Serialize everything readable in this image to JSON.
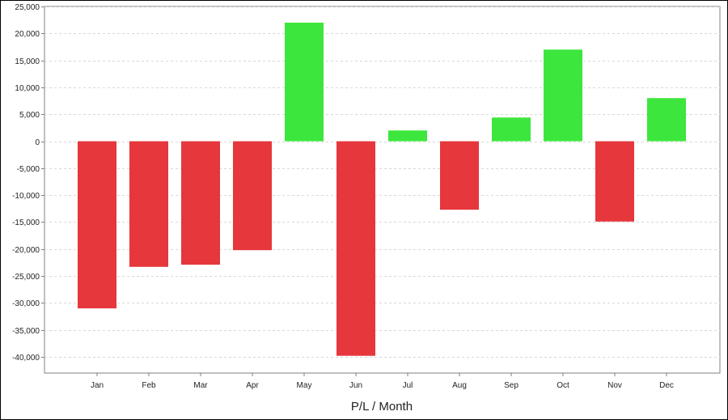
{
  "chart_data": {
    "type": "bar",
    "title": "",
    "xlabel": "P/L / Month",
    "ylabel": "",
    "categories": [
      "Jan",
      "Feb",
      "Mar",
      "Apr",
      "May",
      "Jun",
      "Jul",
      "Aug",
      "Sep",
      "Oct",
      "Nov",
      "Dec"
    ],
    "values": [
      -31000,
      -23300,
      -22900,
      -20200,
      22000,
      -39800,
      2000,
      -12700,
      4400,
      17000,
      -14900,
      8000
    ],
    "ylim": [
      -43000,
      25000
    ],
    "yticks": [
      25000,
      20000,
      15000,
      10000,
      5000,
      0,
      -5000,
      -10000,
      -15000,
      -20000,
      -25000,
      -30000,
      -35000,
      -40000
    ],
    "ytick_labels": [
      "25,000",
      "20,000",
      "15,000",
      "10,000",
      "5,000",
      "0",
      "-5,000",
      "-10,000",
      "-15,000",
      "-20,000",
      "-25,000",
      "-30,000",
      "-35,000",
      "-40,000"
    ],
    "grid": true,
    "legend": "none",
    "colors": {
      "positive": "#3de63d",
      "negative": "#e6373c",
      "grid": "#d8d8d8",
      "axis": "#808080"
    }
  }
}
